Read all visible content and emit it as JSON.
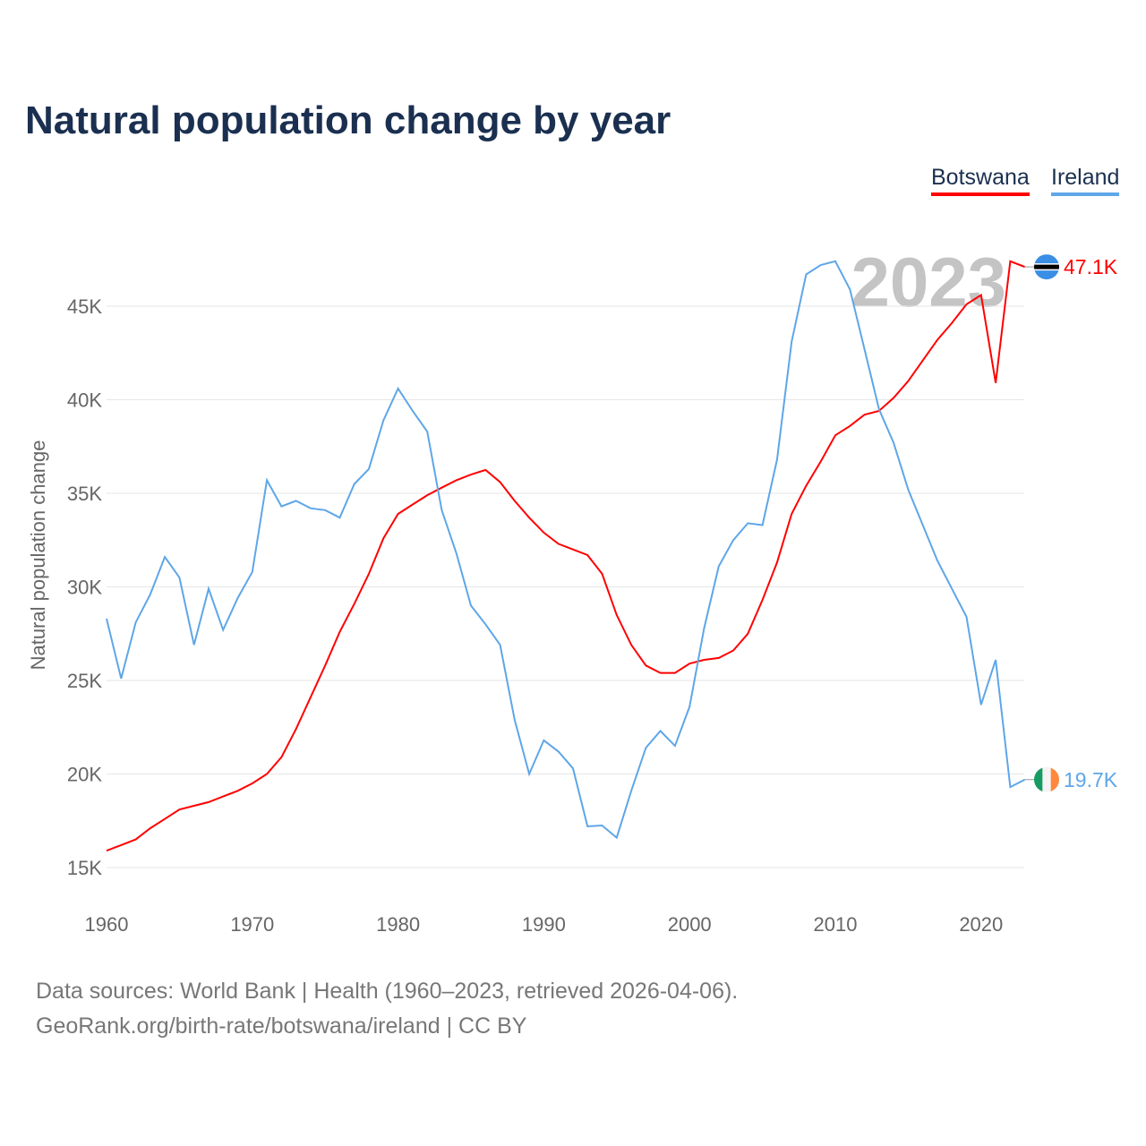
{
  "chart_data": {
    "type": "line",
    "title": "Natural population change by year",
    "xlabel": "",
    "ylabel": "Natural population change",
    "xlim": [
      1960,
      2023
    ],
    "ylim": [
      15000,
      47500
    ],
    "yticks": [
      15000,
      20000,
      25000,
      30000,
      35000,
      40000,
      45000
    ],
    "ytick_labels": [
      "15K",
      "20K",
      "25K",
      "30K",
      "35K",
      "40K",
      "45K"
    ],
    "xticks": [
      1960,
      1970,
      1980,
      1990,
      2000,
      2010,
      2020
    ],
    "xtick_labels": [
      "1960",
      "1970",
      "1980",
      "1990",
      "2000",
      "2010",
      "2020"
    ],
    "grid": true,
    "legend_position": "top-right",
    "year_watermark": "2023",
    "series": [
      {
        "name": "Botswana",
        "color": "#ff0000",
        "end_label": "47.1K",
        "values": [
          15900,
          16200,
          16500,
          17100,
          17600,
          18100,
          18300,
          18500,
          18800,
          19100,
          19500,
          20000,
          20900,
          22400,
          24100,
          25800,
          27600,
          29100,
          30700,
          32600,
          33900,
          34400,
          34900,
          35300,
          35700,
          36000,
          36250,
          35600,
          34600,
          33700,
          32900,
          32300,
          32000,
          31700,
          30700,
          28500,
          26900,
          25800,
          25400,
          25400,
          25900,
          26100,
          26200,
          26600,
          27500,
          29300,
          31300,
          33900,
          35400,
          36700,
          38100,
          38600,
          39200,
          39400,
          40100,
          41000,
          42100,
          43200,
          44100,
          45100,
          45600,
          40900,
          47400,
          47100
        ]
      },
      {
        "name": "Ireland",
        "color": "#5ea6e8",
        "end_label": "19.7K",
        "values": [
          28300,
          25100,
          28100,
          29600,
          31600,
          30500,
          26900,
          29900,
          27700,
          29400,
          30800,
          35700,
          34300,
          34600,
          34200,
          34100,
          33700,
          35500,
          36300,
          38900,
          40600,
          39400,
          38300,
          34100,
          31800,
          29000,
          28000,
          26900,
          22900,
          20000,
          21800,
          21200,
          20300,
          17200,
          17250,
          16600,
          19100,
          21400,
          22300,
          21500,
          23600,
          27800,
          31100,
          32500,
          33400,
          33300,
          36800,
          43100,
          46700,
          47200,
          47400,
          45900,
          42700,
          39500,
          37700,
          35200,
          33300,
          31400,
          29900,
          28400,
          23700,
          26100,
          19300,
          19700
        ]
      }
    ]
  },
  "footer": {
    "line1": "Data sources: World Bank | Health (1960–2023, retrieved 2026-04-06).",
    "line2": "GeoRank.org/birth-rate/botswana/ireland | CC BY"
  }
}
